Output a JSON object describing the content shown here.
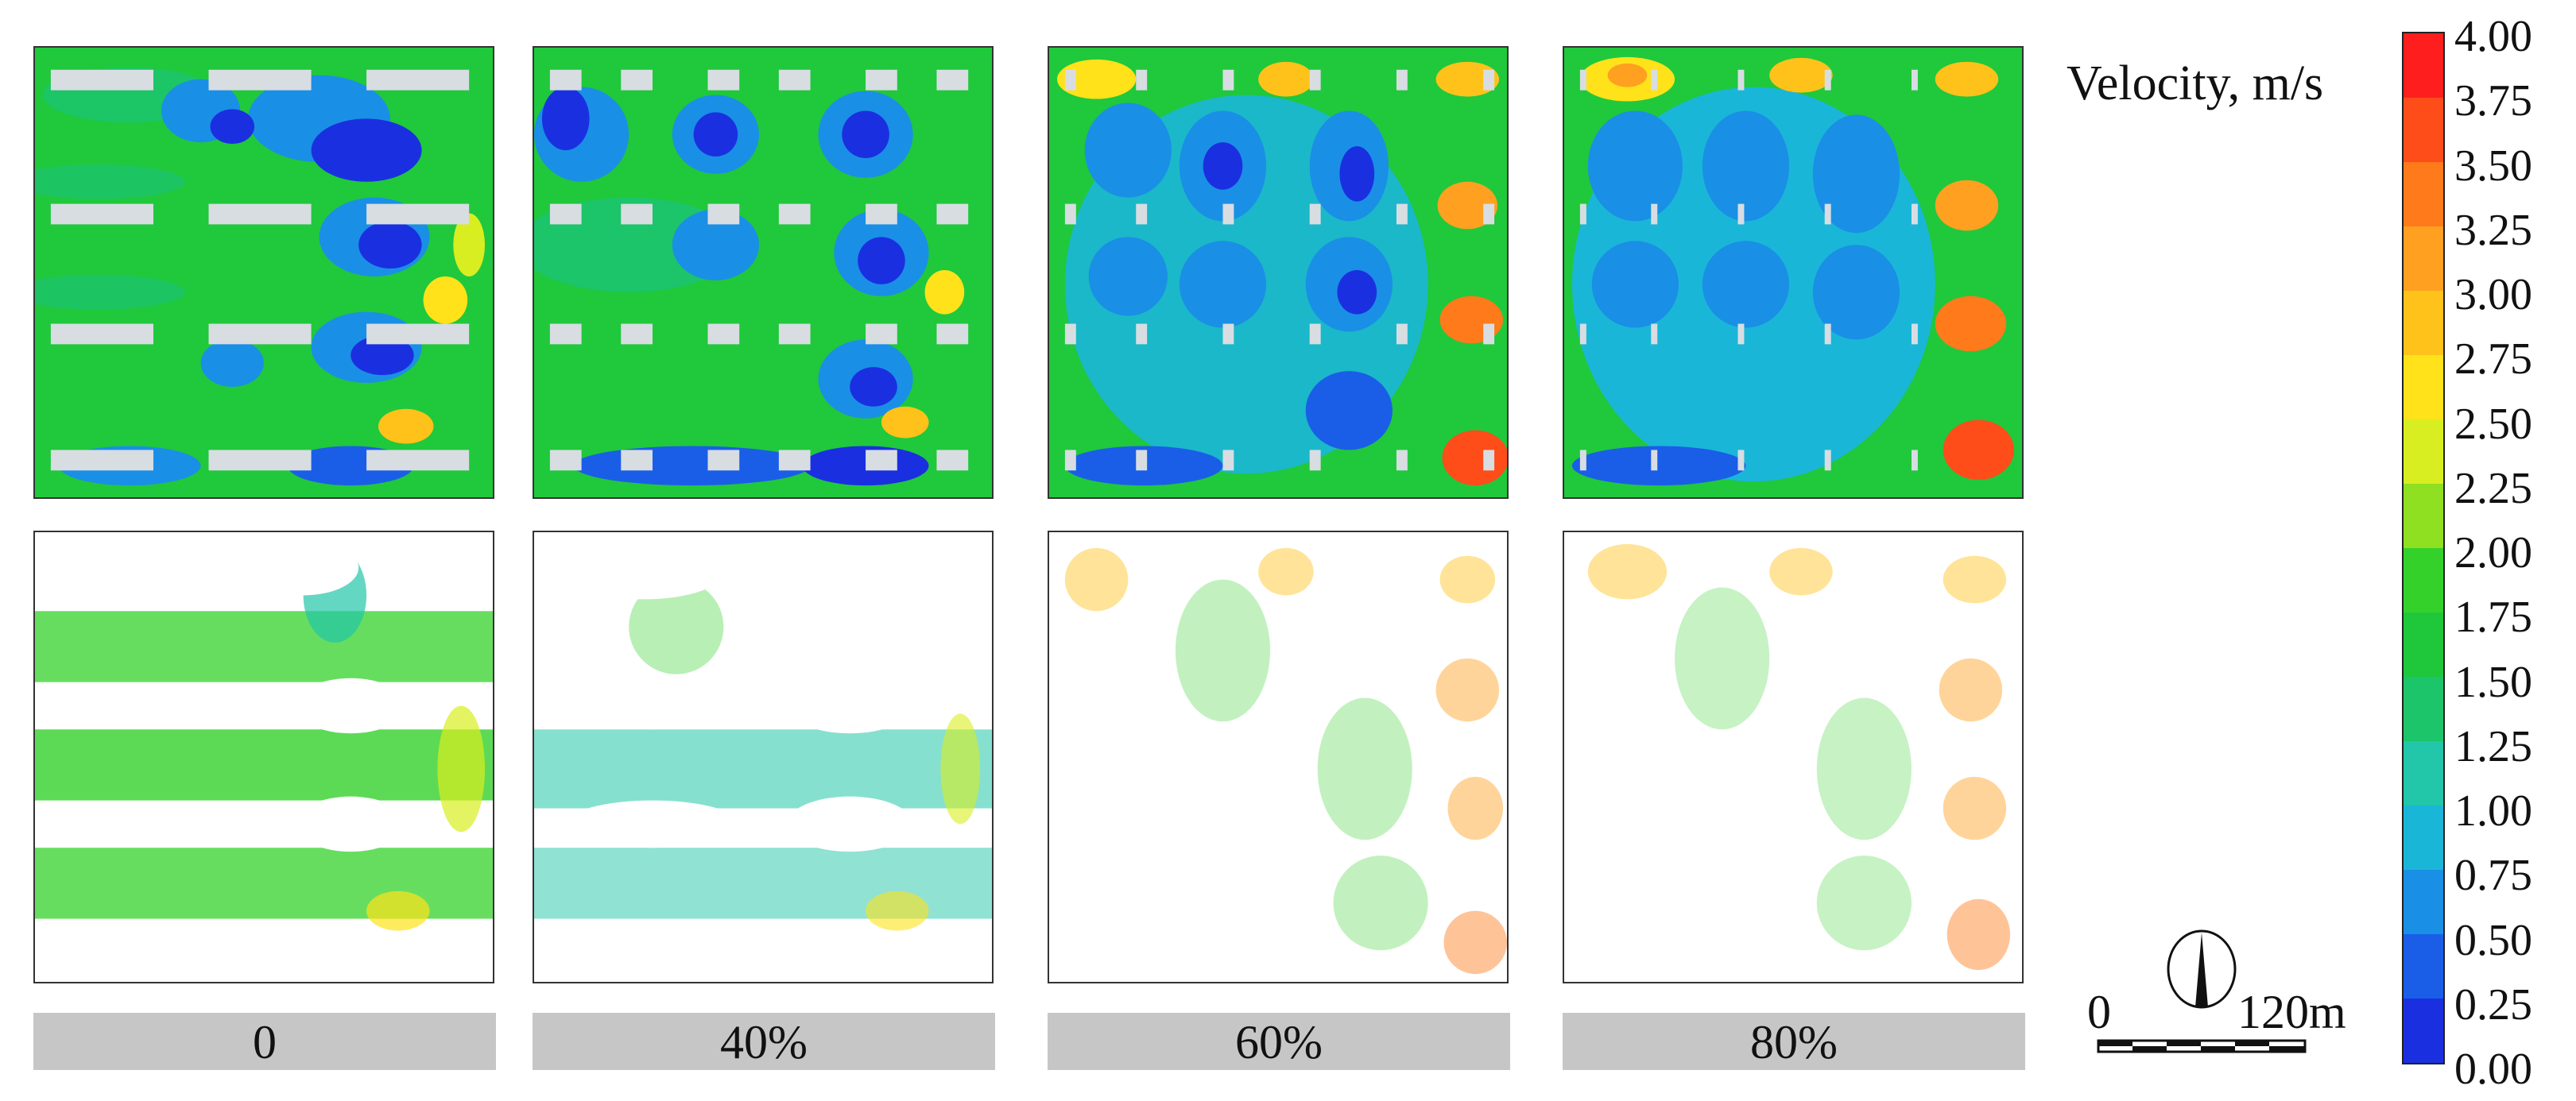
{
  "legend": {
    "title": "Velocity, m/s",
    "ticks": [
      "4.00",
      "3.75",
      "3.50",
      "3.25",
      "3.00",
      "2.75",
      "2.50",
      "2.25",
      "2.00",
      "1.75",
      "1.50",
      "1.25",
      "1.00",
      "0.75",
      "0.50",
      "0.25",
      "0.00"
    ],
    "colors": [
      "#ff1e1e",
      "#ff4d1a",
      "#ff7a1a",
      "#ffa020",
      "#ffc21a",
      "#ffe21a",
      "#d8ee20",
      "#8ee020",
      "#34d12a",
      "#1ec83a",
      "#1cc46a",
      "#22c6a8",
      "#1ab6d8",
      "#1a8fe6",
      "#1a5ee8",
      "#1a30e0"
    ]
  },
  "panel_labels": [
    "0",
    "40%",
    "60%",
    "80%"
  ],
  "scale_bar": {
    "start": "0",
    "end": "120m"
  },
  "colors": {
    "background_flow": "#1fc63a",
    "slow_zone": "#1a30e0",
    "mid_zone": "#1a8fe6",
    "fast_zone": "#ffa020",
    "peak_zone": "#ff3a1a",
    "building": "#d8dde2",
    "label_bar": "#c6c6c6"
  },
  "icons": {
    "north_arrow": "compass-north-arrow-icon"
  }
}
